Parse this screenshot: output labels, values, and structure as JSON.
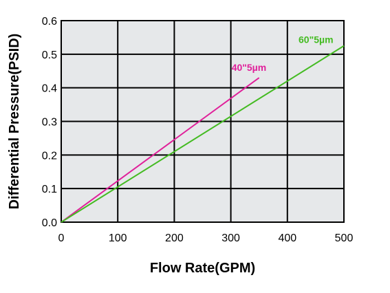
{
  "chart_data": {
    "type": "line",
    "xlabel": "Flow Rate(GPM)",
    "ylabel": "Differential Pressure(PSID)",
    "xlim": [
      0,
      500
    ],
    "ylim": [
      0,
      0.6
    ],
    "x_ticks": [
      "0",
      "100",
      "200",
      "300",
      "400",
      "500"
    ],
    "y_ticks": [
      "0.0",
      "0.1",
      "0.2",
      "0.3",
      "0.4",
      "0.5",
      "0.6"
    ],
    "grid": true,
    "series": [
      {
        "name": "40\"5µm",
        "color": "#e0209a",
        "x": [
          0,
          350
        ],
        "y": [
          0,
          0.43
        ]
      },
      {
        "name": "60\"5µm",
        "color": "#44bb22",
        "x": [
          0,
          500
        ],
        "y": [
          0,
          0.525
        ]
      }
    ]
  }
}
